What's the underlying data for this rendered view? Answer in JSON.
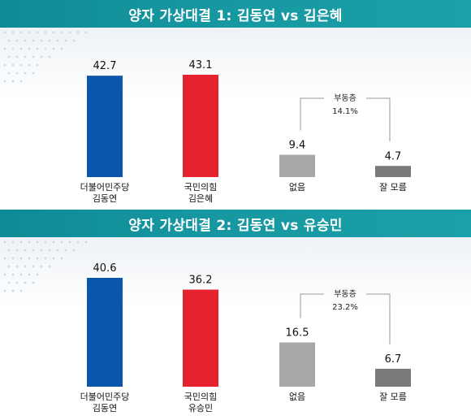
{
  "chart_data": [
    {
      "type": "bar",
      "title": "양자 가상대결 1: 김동연 vs 김은혜",
      "categories": [
        {
          "lines": [
            "더불어민주당",
            "김동연"
          ]
        },
        {
          "lines": [
            "국민의힘",
            "김은혜"
          ]
        },
        {
          "lines": [
            "없음"
          ]
        },
        {
          "lines": [
            "잘 모름"
          ]
        }
      ],
      "values": [
        42.7,
        43.1,
        9.4,
        4.7
      ],
      "value_labels": [
        "42.7",
        "43.1",
        "9.4",
        "4.7"
      ],
      "colors": [
        "#0a56ad",
        "#e5222d",
        "#a8a8a8",
        "#7a7a7a"
      ],
      "bracket": {
        "label": "부동층",
        "value": "14.1%",
        "covers": [
          2,
          3
        ]
      },
      "ylim": [
        0,
        50
      ]
    },
    {
      "type": "bar",
      "title": "양자 가상대결 2: 김동연 vs 유승민",
      "categories": [
        {
          "lines": [
            "더불어민주당",
            "김동연"
          ]
        },
        {
          "lines": [
            "국민의힘",
            "유승민"
          ]
        },
        {
          "lines": [
            "없음"
          ]
        },
        {
          "lines": [
            "잘 모름"
          ]
        }
      ],
      "values": [
        40.6,
        36.2,
        16.5,
        6.7
      ],
      "value_labels": [
        "40.6",
        "36.2",
        "16.5",
        "6.7"
      ],
      "colors": [
        "#0a56ad",
        "#e5222d",
        "#a8a8a8",
        "#7a7a7a"
      ],
      "bracket": {
        "label": "부동층",
        "value": "23.2%",
        "covers": [
          2,
          3
        ]
      },
      "ylim": [
        0,
        50
      ]
    }
  ]
}
